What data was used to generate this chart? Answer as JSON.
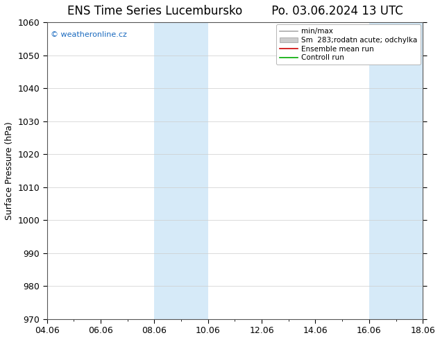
{
  "title_left": "ENS Time Series Lucembursko",
  "title_right": "Po. 03.06.2024 13 UTC",
  "xlabel_ticks": [
    "04.06",
    "06.06",
    "08.06",
    "10.06",
    "12.06",
    "14.06",
    "16.06",
    "18.06"
  ],
  "xlabel_values": [
    0,
    2,
    4,
    6,
    8,
    10,
    12,
    14
  ],
  "ylabel": "Surface Pressure (hPa)",
  "ylim": [
    970,
    1060
  ],
  "yticks": [
    970,
    980,
    990,
    1000,
    1010,
    1020,
    1030,
    1040,
    1050,
    1060
  ],
  "xlim": [
    0,
    14
  ],
  "shaded_regions": [
    {
      "xmin": 4,
      "xmax": 6,
      "color": "#d6eaf8"
    },
    {
      "xmin": 12,
      "xmax": 14,
      "color": "#d6eaf8"
    }
  ],
  "watermark": "© weatheronline.cz",
  "watermark_color": "#1a6abf",
  "legend_entries": [
    {
      "label": "min/max",
      "color": "#aaaaaa",
      "lw": 1.2,
      "style": "-",
      "type": "line"
    },
    {
      "label": "Sm  283;rodatn acute; odchylka",
      "color": "#cccccc",
      "lw": 8,
      "style": "-",
      "type": "patch"
    },
    {
      "label": "Ensemble mean run",
      "color": "#cc0000",
      "lw": 1.2,
      "style": "-",
      "type": "line"
    },
    {
      "label": "Controll run",
      "color": "#00aa00",
      "lw": 1.2,
      "style": "-",
      "type": "line"
    }
  ],
  "bg_color": "#ffffff",
  "plot_bg_color": "#ffffff",
  "grid_color": "#cccccc",
  "title_fontsize": 12,
  "tick_fontsize": 9,
  "ylabel_fontsize": 9,
  "legend_fontsize": 7.5
}
